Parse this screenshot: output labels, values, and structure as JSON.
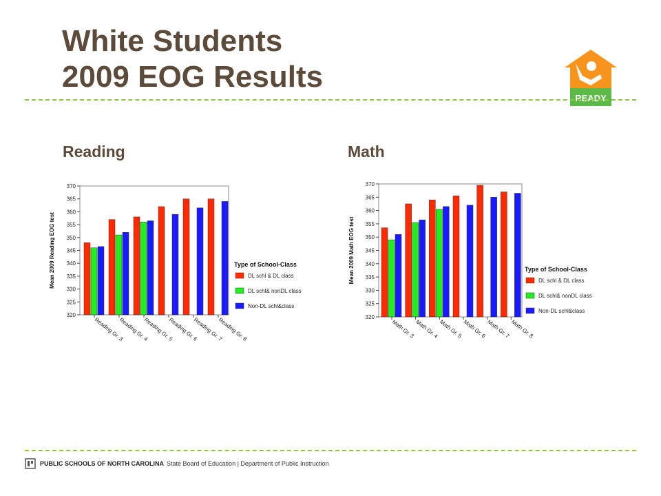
{
  "slide": {
    "title_line1": "White Students",
    "title_line2": "2009 EOG Results",
    "reading_label": "Reading",
    "math_label": "Math",
    "logo_text": "READY",
    "footer_bold": "PUBLIC SCHOOLS OF NORTH CAROLINA",
    "footer_rest": "State Board of Education | Department of Public Instruction"
  },
  "colors": {
    "title": "#5c4a3a",
    "rule": "#8dc63f",
    "logo_orange": "#f7941d",
    "logo_green": "#5bb947"
  },
  "chart_data": [
    {
      "type": "bar",
      "title": "",
      "ylabel": "Mean 2009 Reading EOG test",
      "xlabel": "",
      "ylim": [
        320,
        370
      ],
      "yticks": [
        "320",
        "325",
        "330",
        "335",
        "340",
        "345",
        "350",
        "355",
        "360",
        "365",
        "370"
      ],
      "categories": [
        "Reading Gr. 3",
        "Reading Gr. 4",
        "Reading Gr. 5",
        "Reading Gr. 6",
        "Reading Gr. 7",
        "Reading Gr. 8"
      ],
      "legend_title": "Type of School-Class",
      "legend_position": "right",
      "grid": false,
      "series": [
        {
          "name": "DL schl & DL class",
          "color": "#ff2a00",
          "values": [
            348,
            357,
            358,
            362,
            365,
            365
          ]
        },
        {
          "name": "DL schl& nonDL class",
          "color": "#22ee22",
          "values": [
            346,
            351,
            356,
            null,
            null,
            null
          ]
        },
        {
          "name": "Non-DL schl&class",
          "color": "#1a1aff",
          "values": [
            346.5,
            352,
            356.5,
            359,
            361.5,
            364
          ]
        }
      ]
    },
    {
      "type": "bar",
      "title": "",
      "ylabel": "Mean 2009 Math EOG test",
      "xlabel": "",
      "ylim": [
        320,
        370
      ],
      "yticks": [
        "320",
        "325",
        "330",
        "335",
        "340",
        "345",
        "350",
        "355",
        "360",
        "365",
        "370"
      ],
      "categories": [
        "Math Gr. 3",
        "Math Gr. 4",
        "Math Gr. 5",
        "Math Gr. 6",
        "Math Gr. 7",
        "Math Gr. 8"
      ],
      "legend_title": "Type of School-Class",
      "legend_position": "right",
      "grid": false,
      "series": [
        {
          "name": "DL schl & DL class",
          "color": "#ff2a00",
          "values": [
            353.5,
            362.5,
            364,
            365.5,
            369.5,
            367
          ]
        },
        {
          "name": "DL schl& nonDL class",
          "color": "#22ee22",
          "values": [
            349,
            355.5,
            360.5,
            null,
            null,
            null
          ]
        },
        {
          "name": "Non-DL schl&class",
          "color": "#1a1aff",
          "values": [
            351,
            356.5,
            361.5,
            362,
            365,
            366.5
          ]
        }
      ]
    }
  ]
}
